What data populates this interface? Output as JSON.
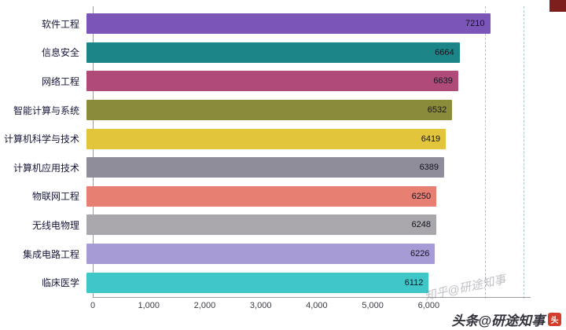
{
  "chart_data": {
    "type": "bar",
    "orientation": "horizontal",
    "title": "",
    "xlabel": "",
    "ylabel": "",
    "categories": [
      "软件工程",
      "信息安全",
      "网络工程",
      "智能计算与系统",
      "计算机科学与技术",
      "计算机应用技术",
      "物联网工程",
      "无线电物理",
      "集成电路工程",
      "临床医学"
    ],
    "values": [
      7210,
      6664,
      6639,
      6532,
      6419,
      6389,
      6250,
      6248,
      6226,
      6112
    ],
    "bar_colors": [
      "#7B56B8",
      "#1B8588",
      "#B04A78",
      "#8B8C3A",
      "#E3C53C",
      "#908D9B",
      "#E87F73",
      "#A9A7AB",
      "#A79BD6",
      "#3FC6C9"
    ],
    "x_ticks": [
      "0",
      "1,000",
      "2,000",
      "3,000",
      "4,000",
      "5,000",
      "6,000"
    ],
    "x_tick_values": [
      0,
      1000,
      2000,
      3000,
      4000,
      5000,
      6000
    ],
    "xlim": [
      0,
      7750
    ],
    "gridline_values": [
      7000,
      7700
    ],
    "grid": "vertical dashed lines, right side only",
    "legend": "none"
  },
  "watermarks": {
    "diagonal_text": "知乎@研途知事",
    "bottom_right_text": "头条@研途知事",
    "logo_glyph": "头",
    "logo_color": "#d43d2c"
  }
}
